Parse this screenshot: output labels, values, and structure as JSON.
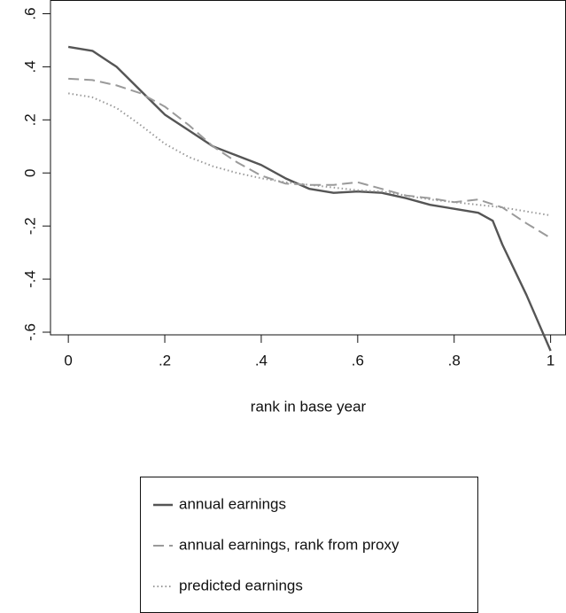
{
  "chart_data": {
    "type": "line",
    "x_label": "rank in base year",
    "xlim": [
      -0.037,
      1.031
    ],
    "ylim": [
      -0.61,
      0.65
    ],
    "xticks": [
      0,
      {
        "value": 0.2,
        "label": ".2"
      },
      {
        "value": 0.4,
        "label": ".4"
      },
      {
        "value": 0.6,
        "label": ".6"
      },
      {
        "value": 0.8,
        "label": ".8"
      },
      1
    ],
    "yticks": [
      {
        "value": -0.6,
        "label": "-.6"
      },
      {
        "value": -0.4,
        "label": "-.4"
      },
      {
        "value": -0.2,
        "label": "-.2"
      },
      0,
      {
        "value": 0.2,
        "label": ".2"
      },
      {
        "value": 0.4,
        "label": ".4"
      },
      {
        "value": 0.6,
        "label": ".6"
      }
    ],
    "grid": false,
    "legend": "bottom",
    "series": [
      {
        "name": "annual earnings",
        "color": "#555555",
        "style": "solid",
        "x": [
          0,
          0.05,
          0.1,
          0.15,
          0.2,
          0.25,
          0.3,
          0.35,
          0.4,
          0.45,
          0.5,
          0.55,
          0.6,
          0.65,
          0.7,
          0.75,
          0.8,
          0.85,
          0.88,
          0.9,
          0.95,
          1
        ],
        "values": [
          0.475,
          0.46,
          0.4,
          0.31,
          0.22,
          0.16,
          0.1,
          0.065,
          0.03,
          -0.02,
          -0.06,
          -0.075,
          -0.07,
          -0.075,
          -0.095,
          -0.12,
          -0.135,
          -0.15,
          -0.18,
          -0.27,
          -0.46,
          -0.67
        ]
      },
      {
        "name": "annual earnings, rank from proxy",
        "color": "#9a9a9a",
        "style": "dashed",
        "x": [
          0,
          0.05,
          0.1,
          0.15,
          0.2,
          0.25,
          0.3,
          0.35,
          0.4,
          0.45,
          0.5,
          0.55,
          0.6,
          0.65,
          0.7,
          0.75,
          0.8,
          0.85,
          0.9,
          0.95,
          1
        ],
        "values": [
          0.355,
          0.35,
          0.33,
          0.3,
          0.25,
          0.18,
          0.1,
          0.04,
          -0.01,
          -0.04,
          -0.045,
          -0.045,
          -0.035,
          -0.06,
          -0.085,
          -0.095,
          -0.11,
          -0.1,
          -0.13,
          -0.19,
          -0.245
        ]
      },
      {
        "name": "predicted earnings",
        "color": "#9a9a9a",
        "style": "dotted",
        "x": [
          0,
          0.05,
          0.1,
          0.15,
          0.2,
          0.25,
          0.3,
          0.35,
          0.4,
          0.45,
          0.5,
          0.55,
          0.6,
          0.65,
          0.7,
          0.75,
          0.8,
          0.85,
          0.9,
          0.95,
          1
        ],
        "values": [
          0.3,
          0.285,
          0.245,
          0.18,
          0.11,
          0.06,
          0.025,
          0.0,
          -0.02,
          -0.035,
          -0.045,
          -0.055,
          -0.065,
          -0.07,
          -0.085,
          -0.1,
          -0.11,
          -0.12,
          -0.13,
          -0.145,
          -0.16
        ]
      }
    ]
  }
}
